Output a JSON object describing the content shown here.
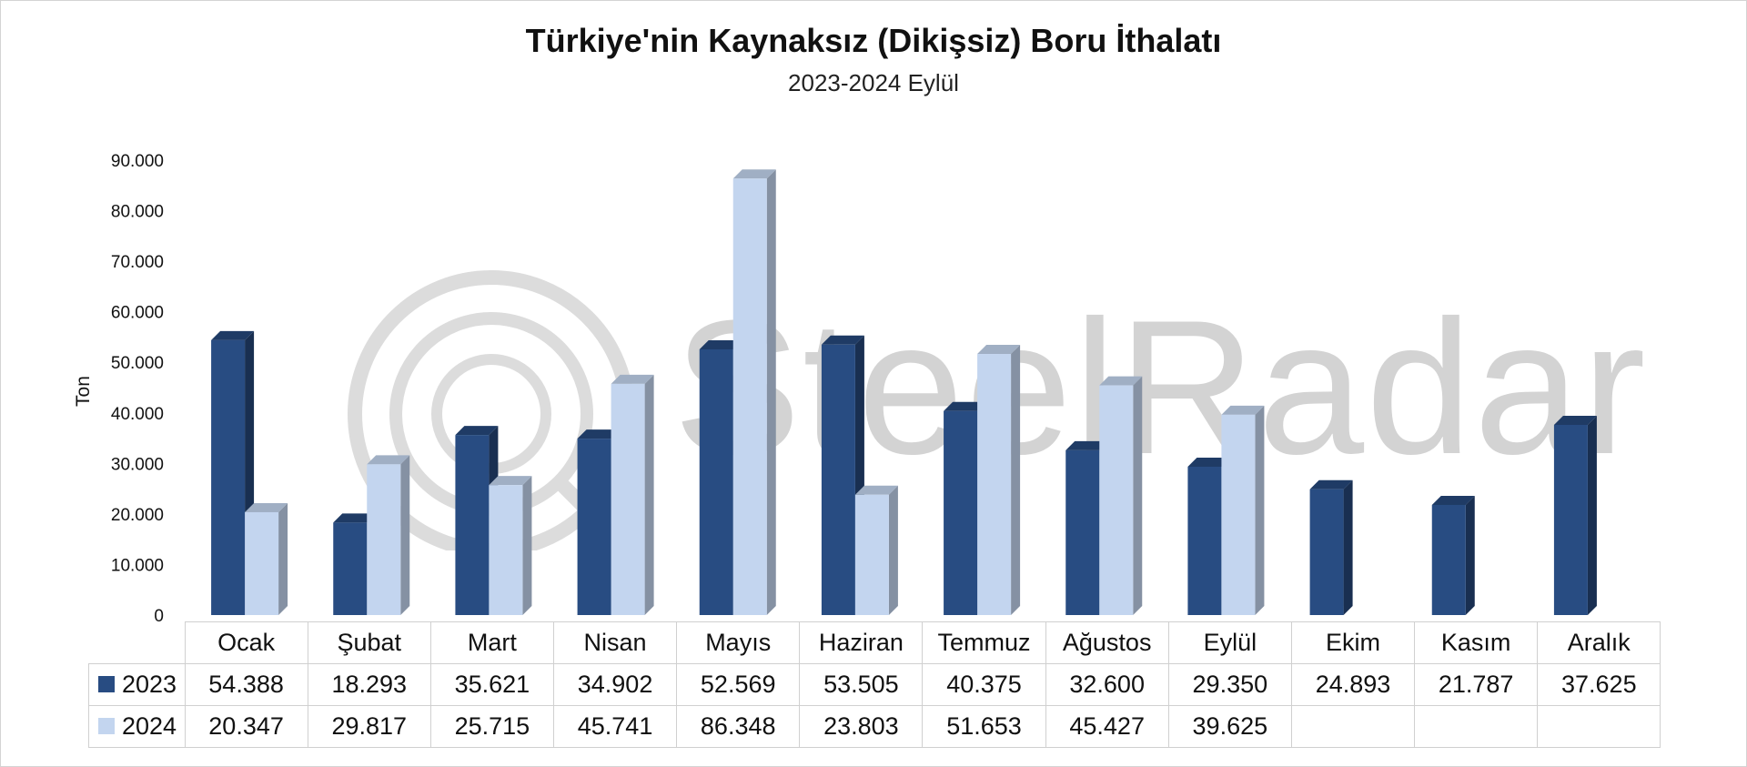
{
  "chart_data": {
    "type": "bar",
    "title": "Türkiye'nin Kaynaksız (Dikişsiz) Boru İthalatı",
    "subtitle": "2023-2024 Eylül",
    "ylabel": "Ton",
    "xlabel": "",
    "ylim": [
      0,
      90000
    ],
    "yticks": [
      "0",
      "10.000",
      "20.000",
      "30.000",
      "40.000",
      "50.000",
      "60.000",
      "70.000",
      "80.000",
      "90.000"
    ],
    "grid": false,
    "legend": "data-table",
    "categories": [
      "Ocak",
      "Şubat",
      "Mart",
      "Nisan",
      "Mayıs",
      "Haziran",
      "Temmuz",
      "Ağustos",
      "Eylül",
      "Ekim",
      "Kasım",
      "Aralık"
    ],
    "series": [
      {
        "name": "2023",
        "color": "#284C82",
        "values": [
          54388,
          18293,
          35621,
          34902,
          52569,
          53505,
          40375,
          32600,
          29350,
          24893,
          21787,
          37625
        ],
        "labels": [
          "54.388",
          "18.293",
          "35.621",
          "34.902",
          "52.569",
          "53.505",
          "40.375",
          "32.600",
          "29.350",
          "24.893",
          "21.787",
          "37.625"
        ]
      },
      {
        "name": "2024",
        "color": "#C3D5EF",
        "values": [
          20347,
          29817,
          25715,
          45741,
          86348,
          23803,
          51653,
          45427,
          39625,
          null,
          null,
          null
        ],
        "labels": [
          "20.347",
          "29.817",
          "25.715",
          "45.741",
          "86.348",
          "23.803",
          "51.653",
          "45.427",
          "39.625",
          "",
          "",
          ""
        ]
      }
    ]
  },
  "watermark": "SteelRadar"
}
